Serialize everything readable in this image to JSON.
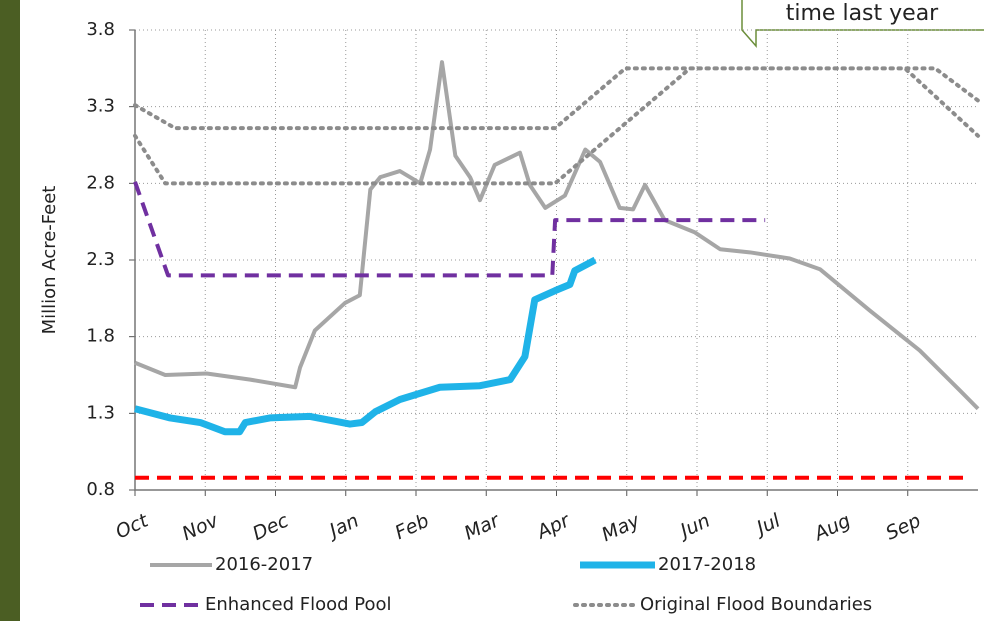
{
  "chart_data": {
    "type": "line",
    "annotation": "time last year",
    "y_label": "Million Acre-Feet",
    "xlim": [
      0,
      12
    ],
    "xticks": [
      {
        "value": 0,
        "label": "Oct"
      },
      {
        "value": 1,
        "label": "Nov"
      },
      {
        "value": 2,
        "label": "Dec"
      },
      {
        "value": 3,
        "label": "Jan"
      },
      {
        "value": 4,
        "label": "Feb"
      },
      {
        "value": 5,
        "label": "Mar"
      },
      {
        "value": 6,
        "label": "Apr"
      },
      {
        "value": 7,
        "label": "May"
      },
      {
        "value": 8,
        "label": "Jun"
      },
      {
        "value": 9,
        "label": "Jul"
      },
      {
        "value": 10,
        "label": "Aug"
      },
      {
        "value": 11,
        "label": "Sep"
      }
    ],
    "ylim": [
      0.8,
      3.8
    ],
    "yticks": [
      0.8,
      1.3,
      1.8,
      2.3,
      2.8,
      3.3,
      3.8
    ],
    "grid": true,
    "series": [
      {
        "name": "2016-2017",
        "color": "#a6a6a6",
        "style": "solid",
        "width": 4,
        "x": [
          0,
          0.43,
          1.02,
          1.64,
          2.28,
          2.35,
          2.56,
          2.99,
          3.2,
          3.35,
          3.49,
          3.77,
          4.06,
          4.2,
          4.37,
          4.56,
          4.77,
          4.91,
          5.12,
          5.48,
          5.62,
          5.84,
          6.12,
          6.41,
          6.62,
          6.9,
          7.09,
          7.26,
          7.54,
          7.97,
          8.33,
          8.75,
          9.32,
          9.75,
          10.46,
          11.17,
          11.74,
          12
        ],
        "values": [
          1.63,
          1.55,
          1.56,
          1.52,
          1.47,
          1.6,
          1.84,
          2.02,
          2.07,
          2.76,
          2.84,
          2.88,
          2.8,
          3.02,
          3.59,
          2.98,
          2.84,
          2.69,
          2.92,
          3.0,
          2.79,
          2.64,
          2.72,
          3.02,
          2.94,
          2.64,
          2.63,
          2.79,
          2.56,
          2.48,
          2.37,
          2.35,
          2.31,
          2.24,
          1.97,
          1.71,
          1.45,
          1.33
        ]
      },
      {
        "name": "2017-2018",
        "color": "#1fb3e8",
        "style": "solid",
        "width": 7,
        "x": [
          0,
          0.5,
          0.93,
          1.28,
          1.49,
          1.57,
          1.92,
          2.49,
          3.06,
          3.23,
          3.42,
          3.77,
          4.34,
          4.91,
          5.34,
          5.55,
          5.69,
          5.98,
          6.19,
          6.26,
          6.55
        ],
        "values": [
          1.33,
          1.27,
          1.24,
          1.18,
          1.18,
          1.24,
          1.27,
          1.28,
          1.23,
          1.24,
          1.31,
          1.39,
          1.47,
          1.48,
          1.52,
          1.67,
          2.04,
          2.1,
          2.14,
          2.23,
          2.3
        ]
      },
      {
        "name": "Enhanced Flood Pool",
        "color": "#7030a0",
        "style": "dashed",
        "width": 4,
        "x": [
          0,
          0.47,
          5.94,
          5.98,
          8.97
        ],
        "values": [
          2.81,
          2.2,
          2.2,
          2.56,
          2.56
        ]
      },
      {
        "name": "Original Flood Boundaries",
        "color": "#8c8c8c",
        "style": "dotted",
        "width": 4,
        "x": [
          0,
          0.57,
          5.98,
          6.98,
          10.96,
          12,
          null,
          0,
          0.43,
          5.98,
          7.9,
          11.39,
          12
        ],
        "values": [
          3.31,
          3.16,
          3.16,
          3.55,
          3.55,
          3.11,
          null,
          3.11,
          2.8,
          2.8,
          3.55,
          3.55,
          3.34
        ]
      },
      {
        "color": "#ff0000",
        "style": "dashed",
        "width": 4,
        "x": [
          0,
          11.8
        ],
        "values": [
          0.88,
          0.88
        ]
      }
    ]
  }
}
